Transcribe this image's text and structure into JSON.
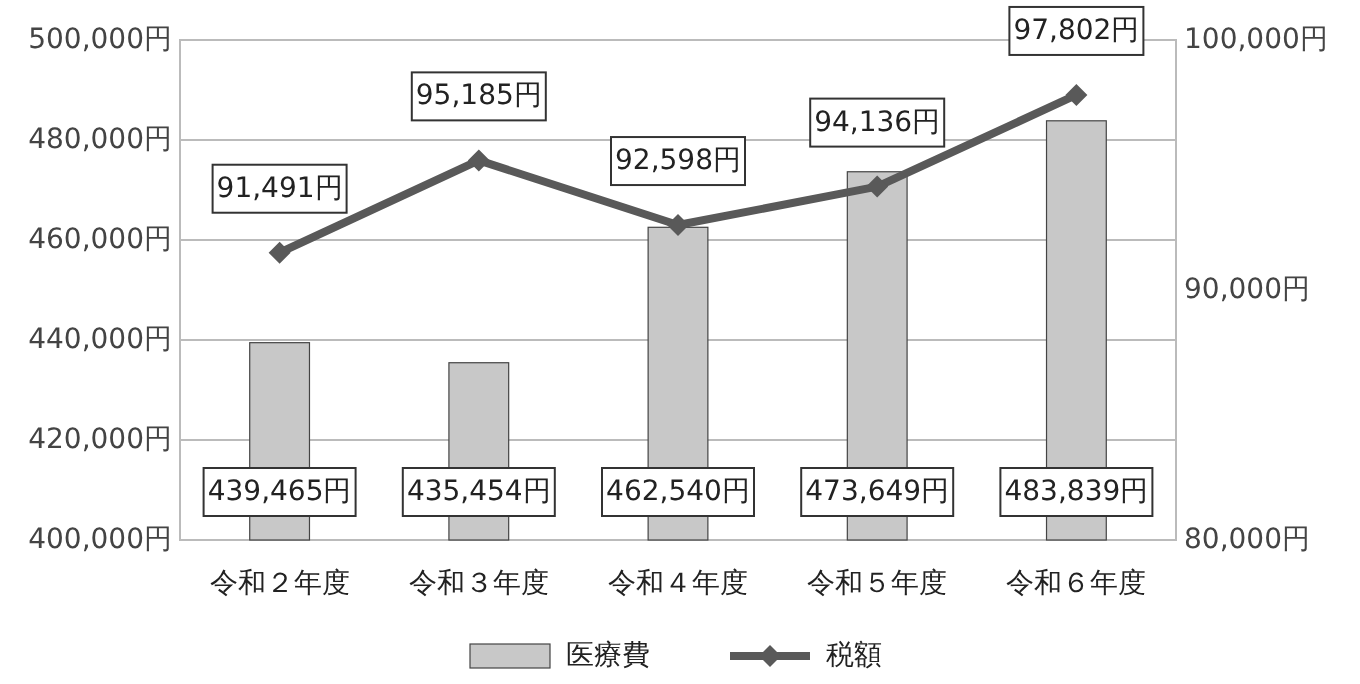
{
  "chart_data": {
    "type": "bar",
    "categories": [
      "令和２年度",
      "令和３年度",
      "令和４年度",
      "令和５年度",
      "令和６年度"
    ],
    "series": [
      {
        "name": "医療費",
        "color": "#c8c8c8",
        "values": [
          439465,
          435454,
          462540,
          473649,
          483839
        ],
        "value_labels": [
          "439,465円",
          "435,454円",
          "462,540円",
          "473,649円",
          "483,839円"
        ]
      },
      {
        "name": "税額",
        "type": "line",
        "axis": "y2",
        "color": "#595959",
        "values": [
          91491,
          95185,
          92598,
          94136,
          97802
        ],
        "value_labels": [
          "91,491円",
          "95,185円",
          "92,598円",
          "94,136円",
          "97,802円"
        ]
      }
    ],
    "ylim": [
      400000,
      500000
    ],
    "yticks": [
      {
        "value": 400000,
        "label": "400,000円"
      },
      {
        "value": 420000,
        "label": "420,000円"
      },
      {
        "value": 440000,
        "label": "440,000円"
      },
      {
        "value": 460000,
        "label": "460,000円"
      },
      {
        "value": 480000,
        "label": "480,000円"
      },
      {
        "value": 500000,
        "label": "500,000円"
      }
    ],
    "y2lim": [
      80000,
      100000
    ],
    "y2ticks": [
      {
        "value": 80000,
        "label": "80,000円"
      },
      {
        "value": 90000,
        "label": "90,000円"
      },
      {
        "value": 100000,
        "label": "100,000円"
      }
    ],
    "grid": "y",
    "legend": "bottom",
    "marker": "diamond",
    "line_style": "solid"
  }
}
